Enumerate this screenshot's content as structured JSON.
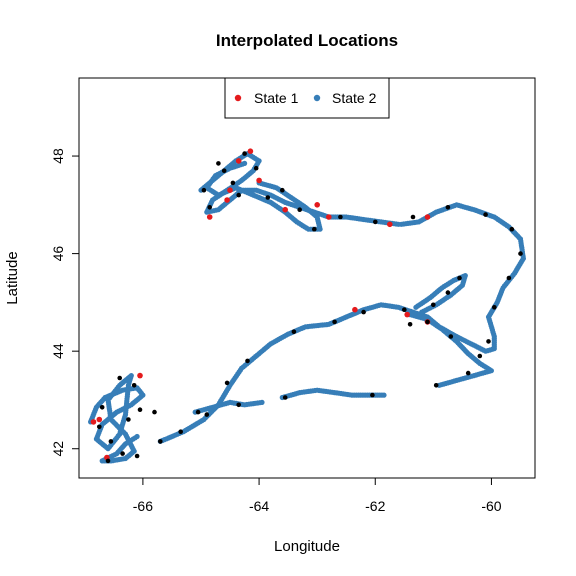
{
  "chart_data": {
    "type": "scatter",
    "title": "Interpolated Locations",
    "xlabel": "Longitude",
    "ylabel": "Latitude",
    "xlim": [
      -67.1,
      -59.25
    ],
    "ylim": [
      41.4,
      49.6
    ],
    "xticks": [
      -66,
      -64,
      -62,
      -60
    ],
    "yticks": [
      42,
      44,
      46,
      48
    ],
    "grid": false,
    "legend": {
      "placement": "top-center",
      "entries": [
        {
          "name": "State 1",
          "color": "#e41a1c"
        },
        {
          "name": "State 2",
          "color": "#377eb8"
        }
      ]
    },
    "observed_color": "#000000",
    "series": [
      {
        "name": "State 1",
        "color": "#e41a1c",
        "points": [
          [
            -66.85,
            42.55
          ],
          [
            -66.75,
            42.6
          ],
          [
            -66.05,
            43.5
          ],
          [
            -66.62,
            41.82
          ],
          [
            -64.85,
            46.75
          ],
          [
            -64.55,
            47.1
          ],
          [
            -64.15,
            48.1
          ],
          [
            -64.0,
            47.5
          ],
          [
            -64.5,
            47.3
          ],
          [
            -63.55,
            46.9
          ],
          [
            -62.8,
            46.75
          ],
          [
            -61.75,
            46.6
          ],
          [
            -61.1,
            46.75
          ],
          [
            -62.35,
            44.85
          ],
          [
            -61.45,
            44.75
          ],
          [
            -61.1,
            44.6
          ],
          [
            -63.0,
            47.0
          ],
          [
            -64.35,
            47.9
          ]
        ]
      },
      {
        "name": "State 2",
        "color": "#377eb8",
        "tracks": [
          [
            [
              -66.9,
              42.55
            ],
            [
              -66.8,
              42.85
            ],
            [
              -66.65,
              43.05
            ],
            [
              -66.35,
              43.2
            ],
            [
              -66.1,
              43.25
            ],
            [
              -66.0,
              43.1
            ],
            [
              -66.2,
              42.9
            ],
            [
              -66.45,
              42.75
            ],
            [
              -66.7,
              42.5
            ],
            [
              -66.8,
              42.2
            ],
            [
              -66.6,
              42.0
            ],
            [
              -66.4,
              42.3
            ],
            [
              -66.3,
              42.7
            ],
            [
              -66.25,
              43.3
            ],
            [
              -66.2,
              43.5
            ],
            [
              -66.4,
              43.3
            ],
            [
              -66.6,
              43.0
            ],
            [
              -66.55,
              42.6
            ],
            [
              -66.3,
              42.3
            ],
            [
              -66.15,
              41.95
            ],
            [
              -66.3,
              41.8
            ],
            [
              -66.55,
              41.75
            ],
            [
              -66.7,
              41.75
            ],
            [
              -66.45,
              41.9
            ],
            [
              -66.3,
              42.1
            ],
            [
              -66.1,
              42.25
            ]
          ],
          [
            [
              -65.7,
              42.15
            ],
            [
              -65.3,
              42.35
            ],
            [
              -64.95,
              42.6
            ],
            [
              -64.7,
              42.9
            ],
            [
              -64.5,
              43.3
            ],
            [
              -64.3,
              43.65
            ],
            [
              -64.0,
              43.95
            ],
            [
              -63.8,
              44.15
            ],
            [
              -63.5,
              44.35
            ],
            [
              -63.2,
              44.5
            ],
            [
              -62.8,
              44.55
            ],
            [
              -62.5,
              44.7
            ],
            [
              -62.2,
              44.85
            ],
            [
              -61.9,
              44.95
            ],
            [
              -61.6,
              44.9
            ],
            [
              -61.35,
              44.8
            ],
            [
              -61.1,
              44.7
            ],
            [
              -60.9,
              44.5
            ],
            [
              -60.6,
              44.3
            ],
            [
              -60.35,
              44.15
            ],
            [
              -60.1,
              44.0
            ],
            [
              -59.95,
              44.05
            ],
            [
              -59.95,
              44.3
            ],
            [
              -60.05,
              44.7
            ],
            [
              -59.9,
              45.0
            ],
            [
              -59.8,
              45.3
            ],
            [
              -59.6,
              45.6
            ],
            [
              -59.45,
              45.9
            ],
            [
              -59.5,
              46.3
            ],
            [
              -59.7,
              46.55
            ],
            [
              -59.95,
              46.75
            ],
            [
              -60.3,
              46.9
            ],
            [
              -60.6,
              47.0
            ],
            [
              -60.95,
              46.85
            ],
            [
              -61.25,
              46.65
            ],
            [
              -61.55,
              46.6
            ]
          ],
          [
            [
              -65.1,
              42.75
            ],
            [
              -64.8,
              42.85
            ],
            [
              -64.5,
              42.95
            ],
            [
              -64.25,
              42.9
            ],
            [
              -63.95,
              42.95
            ]
          ],
          [
            [
              -63.6,
              43.05
            ],
            [
              -63.3,
              43.15
            ],
            [
              -63.0,
              43.2
            ],
            [
              -62.7,
              43.15
            ],
            [
              -62.4,
              43.1
            ],
            [
              -62.1,
              43.1
            ],
            [
              -61.85,
              43.1
            ]
          ],
          [
            [
              -61.4,
              44.75
            ],
            [
              -61.1,
              44.65
            ],
            [
              -60.85,
              44.45
            ],
            [
              -60.6,
              44.2
            ],
            [
              -60.4,
              43.95
            ],
            [
              -60.2,
              43.75
            ],
            [
              -60.0,
              43.6
            ],
            [
              -60.3,
              43.5
            ],
            [
              -60.6,
              43.4
            ],
            [
              -60.9,
              43.3
            ]
          ],
          [
            [
              -61.2,
              44.8
            ],
            [
              -60.95,
              44.95
            ],
            [
              -60.7,
              45.15
            ],
            [
              -60.5,
              45.35
            ],
            [
              -60.45,
              45.55
            ],
            [
              -60.65,
              45.45
            ],
            [
              -60.85,
              45.3
            ],
            [
              -61.05,
              45.1
            ],
            [
              -61.3,
              44.9
            ]
          ],
          [
            [
              -65.0,
              47.3
            ],
            [
              -64.8,
              47.5
            ],
            [
              -64.6,
              47.7
            ],
            [
              -64.4,
              47.9
            ],
            [
              -64.2,
              48.05
            ],
            [
              -64.0,
              47.9
            ],
            [
              -64.1,
              47.7
            ],
            [
              -64.3,
              47.5
            ],
            [
              -64.55,
              47.3
            ],
            [
              -64.8,
              47.1
            ],
            [
              -64.9,
              46.85
            ],
            [
              -64.7,
              46.9
            ],
            [
              -64.5,
              47.1
            ],
            [
              -64.3,
              47.3
            ],
            [
              -64.05,
              47.3
            ],
            [
              -63.8,
              47.2
            ],
            [
              -63.55,
              47.05
            ],
            [
              -63.3,
              46.95
            ],
            [
              -63.05,
              46.85
            ],
            [
              -62.8,
              46.75
            ],
            [
              -62.5,
              46.75
            ],
            [
              -62.2,
              46.7
            ],
            [
              -61.9,
              46.65
            ],
            [
              -61.6,
              46.6
            ]
          ],
          [
            [
              -64.0,
              47.45
            ],
            [
              -63.7,
              47.35
            ],
            [
              -63.45,
              47.15
            ],
            [
              -63.2,
              46.95
            ],
            [
              -63.0,
              46.75
            ],
            [
              -62.95,
              46.5
            ],
            [
              -63.15,
              46.5
            ],
            [
              -63.35,
              46.65
            ],
            [
              -63.55,
              46.85
            ],
            [
              -63.8,
              47.05
            ],
            [
              -64.1,
              47.2
            ],
            [
              -64.4,
              47.35
            ],
            [
              -64.7,
              47.2
            ],
            [
              -64.9,
              47.35
            ],
            [
              -64.75,
              47.6
            ],
            [
              -64.5,
              47.75
            ],
            [
              -64.25,
              47.85
            ]
          ]
        ]
      }
    ],
    "observed_points": [
      [
        -66.75,
        42.45
      ],
      [
        -66.4,
        43.45
      ],
      [
        -66.15,
        43.3
      ],
      [
        -66.55,
        42.15
      ],
      [
        -66.35,
        41.9
      ],
      [
        -66.05,
        42.8
      ],
      [
        -65.7,
        42.15
      ],
      [
        -65.35,
        42.35
      ],
      [
        -64.9,
        42.7
      ],
      [
        -64.55,
        43.35
      ],
      [
        -64.2,
        43.8
      ],
      [
        -63.4,
        44.4
      ],
      [
        -62.7,
        44.6
      ],
      [
        -62.2,
        44.8
      ],
      [
        -61.5,
        44.85
      ],
      [
        -61.1,
        44.6
      ],
      [
        -60.7,
        44.3
      ],
      [
        -60.2,
        43.9
      ],
      [
        -60.05,
        44.2
      ],
      [
        -59.95,
        44.9
      ],
      [
        -59.7,
        45.5
      ],
      [
        -59.5,
        46.0
      ],
      [
        -59.65,
        46.5
      ],
      [
        -60.1,
        46.8
      ],
      [
        -61.4,
        44.55
      ],
      [
        -60.75,
        45.2
      ],
      [
        -60.55,
        45.5
      ],
      [
        -61.0,
        44.95
      ],
      [
        -60.4,
        43.55
      ],
      [
        -60.95,
        43.3
      ],
      [
        -62.05,
        43.1
      ],
      [
        -63.55,
        43.05
      ],
      [
        -64.35,
        42.9
      ],
      [
        -65.05,
        42.75
      ],
      [
        -65.8,
        42.75
      ],
      [
        -64.95,
        47.3
      ],
      [
        -64.6,
        47.7
      ],
      [
        -64.25,
        48.05
      ],
      [
        -64.05,
        47.75
      ],
      [
        -64.45,
        47.45
      ],
      [
        -64.85,
        46.95
      ],
      [
        -64.35,
        47.2
      ],
      [
        -63.85,
        47.15
      ],
      [
        -63.3,
        46.9
      ],
      [
        -63.05,
        46.5
      ],
      [
        -62.6,
        46.75
      ],
      [
        -62.0,
        46.65
      ],
      [
        -61.35,
        46.75
      ],
      [
        -60.75,
        46.95
      ],
      [
        -63.6,
        47.3
      ],
      [
        -64.7,
        47.85
      ],
      [
        -66.25,
        42.6
      ],
      [
        -66.6,
        41.75
      ],
      [
        -66.1,
        41.85
      ],
      [
        -66.7,
        42.85
      ]
    ]
  }
}
